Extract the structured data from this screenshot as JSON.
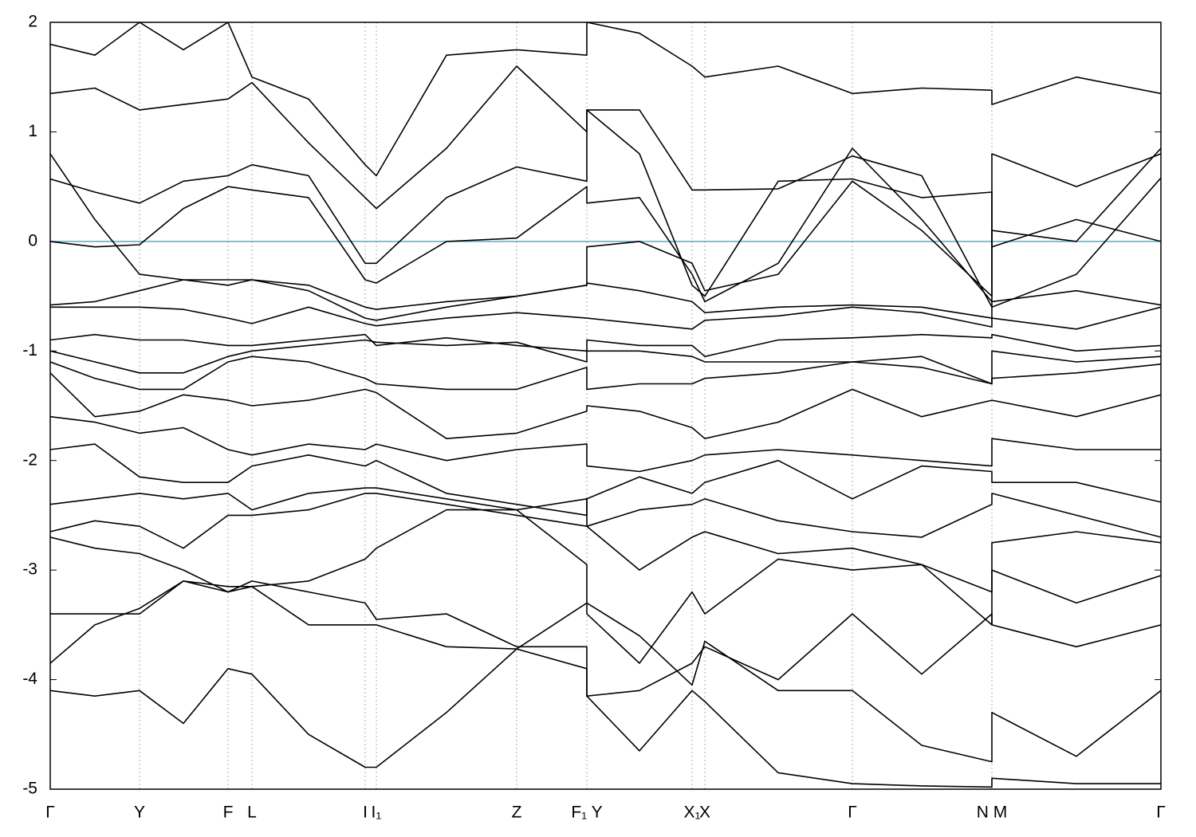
{
  "chart_data": {
    "type": "line",
    "x": [
      0,
      0.56,
      1.12,
      1.67,
      2.23,
      2.53,
      3.24,
      3.95,
      4.09,
      4.97,
      5.85,
      6.73,
      6.73,
      7.39,
      8.05,
      8.21,
      9.13,
      10.06,
      10.93,
      11.81,
      11.81,
      12.87,
      13.93
    ],
    "series": [
      {
        "color": "#000000",
        "values": [
          0.8,
          0.2,
          -0.3,
          -0.35,
          -0.35,
          -0.35,
          -0.4,
          -0.6,
          -0.62,
          -0.55,
          -0.5,
          -0.4,
          -0.05,
          0.0,
          -0.2,
          -0.45,
          -0.3,
          0.55,
          0.1,
          -0.5,
          0.8,
          0.5,
          0.8
        ]
      },
      {
        "color": "#000000",
        "values": [
          0.0,
          -0.05,
          -0.03,
          0.3,
          0.5,
          0.47,
          0.4,
          -0.35,
          -0.38,
          0.0,
          0.03,
          0.5,
          0.35,
          0.4,
          -0.3,
          -0.55,
          -0.2,
          0.85,
          0.2,
          -0.55,
          0.1,
          0.0,
          0.85
        ]
      },
      {
        "color": "#000000",
        "values": [
          0.57,
          0.45,
          0.35,
          0.55,
          0.6,
          0.7,
          0.6,
          -0.2,
          -0.2,
          0.4,
          0.68,
          0.55,
          1.2,
          1.2,
          0.47,
          0.47,
          0.48,
          0.78,
          0.6,
          -0.6,
          -0.6,
          -0.3,
          0.58
        ]
      },
      {
        "color": "#000000",
        "values": [
          1.35,
          1.4,
          1.2,
          1.25,
          1.3,
          1.45,
          0.9,
          0.4,
          0.3,
          0.85,
          1.6,
          1.0,
          1.2,
          0.8,
          -0.4,
          -0.5,
          0.55,
          0.57,
          0.4,
          0.45,
          -0.05,
          0.2,
          0.0
        ]
      },
      {
        "color": "#000000",
        "values": [
          1.8,
          1.7,
          2.0,
          1.75,
          2.0,
          1.5,
          1.3,
          0.7,
          0.6,
          1.7,
          1.75,
          1.7,
          2.0,
          1.9,
          1.6,
          1.5,
          1.6,
          1.35,
          1.4,
          1.38,
          1.25,
          1.5,
          1.35
        ]
      },
      {
        "color": "#000000",
        "values": [
          -0.58,
          -0.55,
          -0.45,
          -0.35,
          -0.4,
          -0.35,
          -0.45,
          -0.7,
          -0.72,
          -0.6,
          -0.5,
          -0.4,
          -0.38,
          -0.45,
          -0.55,
          -0.65,
          -0.6,
          -0.58,
          -0.6,
          -0.7,
          -0.55,
          -0.45,
          -0.58
        ]
      },
      {
        "color": "#000000",
        "values": [
          -0.6,
          -0.6,
          -0.6,
          -0.62,
          -0.7,
          -0.75,
          -0.6,
          -0.75,
          -0.77,
          -0.7,
          -0.65,
          -0.7,
          -0.7,
          -0.75,
          -0.8,
          -0.72,
          -0.68,
          -0.6,
          -0.65,
          -0.78,
          -0.7,
          -0.8,
          -0.6
        ]
      },
      {
        "color": "#000000",
        "values": [
          -0.9,
          -0.85,
          -0.9,
          -0.9,
          -0.95,
          -0.95,
          -0.9,
          -0.85,
          -0.95,
          -0.88,
          -0.95,
          -1.0,
          -0.9,
          -0.95,
          -0.95,
          -1.05,
          -0.9,
          -0.88,
          -0.85,
          -0.88,
          -0.85,
          -1.0,
          -0.95
        ]
      },
      {
        "color": "#000000",
        "values": [
          -1.0,
          -1.1,
          -1.2,
          -1.2,
          -1.05,
          -1.0,
          -0.95,
          -0.9,
          -0.92,
          -0.95,
          -0.92,
          -1.1,
          -1.0,
          -1.0,
          -1.05,
          -1.1,
          -1.1,
          -1.1,
          -1.05,
          -1.3,
          -1.0,
          -1.1,
          -1.05
        ]
      },
      {
        "color": "#000000",
        "values": [
          -1.1,
          -1.25,
          -1.35,
          -1.35,
          -1.1,
          -1.05,
          -1.1,
          -1.25,
          -1.3,
          -1.35,
          -1.35,
          -1.15,
          -1.35,
          -1.3,
          -1.3,
          -1.25,
          -1.2,
          -1.1,
          -1.15,
          -1.3,
          -1.25,
          -1.2,
          -1.12
        ]
      },
      {
        "color": "#000000",
        "values": [
          -1.2,
          -1.6,
          -1.55,
          -1.4,
          -1.45,
          -1.5,
          -1.45,
          -1.35,
          -1.38,
          -1.8,
          -1.75,
          -1.55,
          -1.5,
          -1.55,
          -1.7,
          -1.8,
          -1.65,
          -1.35,
          -1.6,
          -1.45,
          -1.45,
          -1.6,
          -1.4
        ]
      },
      {
        "color": "#000000",
        "values": [
          -1.6,
          -1.65,
          -1.75,
          -1.7,
          -1.9,
          -1.95,
          -1.85,
          -1.9,
          -1.85,
          -2.0,
          -1.9,
          -1.85,
          -2.05,
          -2.1,
          -2.0,
          -1.95,
          -1.9,
          -1.95,
          -2.0,
          -2.05,
          -1.8,
          -1.9,
          -1.9
        ]
      },
      {
        "color": "#000000",
        "values": [
          -1.9,
          -1.85,
          -2.15,
          -2.2,
          -2.2,
          -2.05,
          -1.95,
          -2.05,
          -2.0,
          -2.3,
          -2.4,
          -2.5,
          -2.35,
          -2.15,
          -2.3,
          -2.2,
          -2.0,
          -2.35,
          -2.05,
          -2.1,
          -2.2,
          -2.2,
          -2.38
        ]
      },
      {
        "color": "#000000",
        "values": [
          -2.4,
          -2.35,
          -2.3,
          -2.35,
          -2.3,
          -2.45,
          -2.3,
          -2.25,
          -2.25,
          -2.35,
          -2.45,
          -2.35,
          -2.6,
          -2.45,
          -2.4,
          -2.35,
          -2.55,
          -2.65,
          -2.7,
          -2.4,
          -2.3,
          -2.5,
          -2.7
        ]
      },
      {
        "color": "#000000",
        "values": [
          -2.65,
          -2.55,
          -2.6,
          -2.8,
          -2.5,
          -2.5,
          -2.45,
          -2.3,
          -2.3,
          -2.4,
          -2.5,
          -2.6,
          -2.6,
          -3.0,
          -2.7,
          -2.65,
          -2.85,
          -2.8,
          -2.95,
          -3.2,
          -2.75,
          -2.65,
          -2.75
        ]
      },
      {
        "color": "#000000",
        "values": [
          -2.7,
          -2.8,
          -2.85,
          -3.0,
          -3.2,
          -3.15,
          -3.1,
          -2.9,
          -2.8,
          -2.45,
          -2.45,
          -2.95,
          -3.4,
          -3.85,
          -3.2,
          -3.4,
          -2.9,
          -3.0,
          -2.95,
          -3.5,
          -3.0,
          -3.3,
          -3.05
        ]
      },
      {
        "color": "#000000",
        "values": [
          -3.4,
          -3.4,
          -3.4,
          -3.1,
          -3.2,
          -3.1,
          -3.2,
          -3.3,
          -3.45,
          -3.4,
          -3.7,
          -3.7,
          -4.15,
          -4.1,
          -3.85,
          -3.7,
          -4.0,
          -3.4,
          -3.95,
          -3.4,
          -3.5,
          -3.7,
          -3.5
        ]
      },
      {
        "color": "#000000",
        "values": [
          -3.85,
          -3.5,
          -3.35,
          -3.1,
          -3.15,
          -3.15,
          -3.5,
          -3.5,
          -3.5,
          -3.7,
          -3.72,
          -3.3,
          -3.3,
          -3.6,
          -4.05,
          -3.65,
          -4.1,
          -4.1,
          -4.6,
          -4.75,
          -4.3,
          -4.7,
          -4.1
        ]
      },
      {
        "color": "#000000",
        "values": [
          -4.1,
          -4.15,
          -4.1,
          -4.4,
          -3.9,
          -3.95,
          -4.5,
          -4.8,
          -4.8,
          -4.3,
          -3.72,
          -3.9,
          -4.15,
          -4.65,
          -4.1,
          -4.2,
          -4.85,
          -4.95,
          -4.97,
          -4.98,
          -4.9,
          -4.95,
          -4.95
        ]
      }
    ],
    "xlim": [
      0,
      13.93
    ],
    "ylim": [
      -5,
      2
    ],
    "xticks": [
      {
        "value": 0,
        "label": "Γ"
      },
      {
        "value": 1.12,
        "label": "Y"
      },
      {
        "value": 2.23,
        "label": "F"
      },
      {
        "value": 2.53,
        "label": "L"
      },
      {
        "value": 3.95,
        "label": "I"
      },
      {
        "value": 4.09,
        "label": "I₁"
      },
      {
        "value": 5.85,
        "label": "Z"
      },
      {
        "value": 6.73,
        "label": "F₁ Y"
      },
      {
        "value": 8.05,
        "label": "X₁"
      },
      {
        "value": 8.21,
        "label": "X"
      },
      {
        "value": 10.06,
        "label": "Γ"
      },
      {
        "value": 11.81,
        "label": "N M"
      },
      {
        "value": 13.93,
        "label": "Γ"
      }
    ],
    "yticks": [
      -5,
      -4,
      -3,
      -2,
      -1,
      0,
      1,
      2
    ],
    "xgrid": true,
    "reference_line": {
      "y": 0,
      "color": "#5fa8c0"
    }
  }
}
